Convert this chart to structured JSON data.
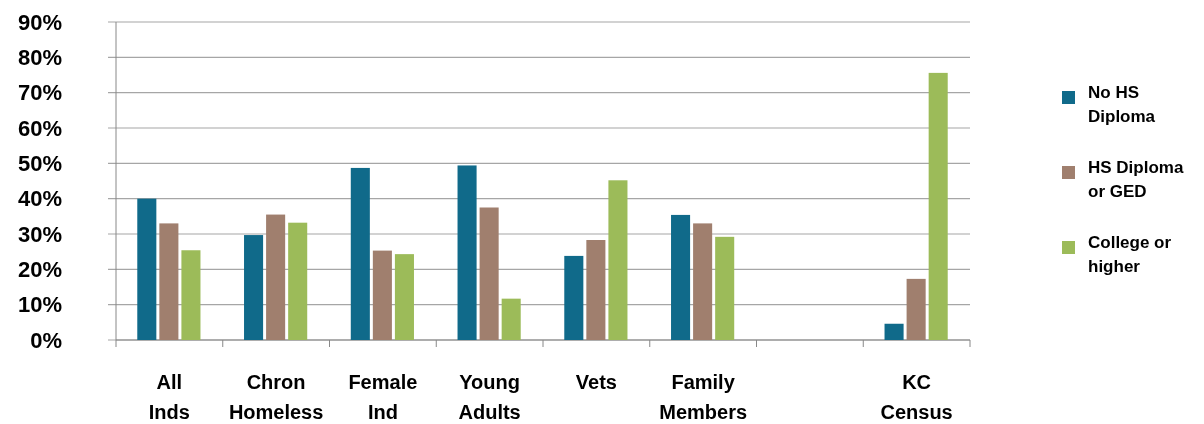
{
  "chart_data": {
    "type": "bar",
    "categories": [
      "All Inds",
      "Chron Homeless",
      "Female Ind",
      "Young Adults",
      "Vets",
      "Family Members",
      null,
      "KC Census"
    ],
    "series": [
      {
        "name": "No HS Diploma",
        "color": "#106a8a",
        "values": [
          40,
          29.7,
          48.7,
          49.4,
          23.8,
          35.4,
          null,
          4.6
        ]
      },
      {
        "name": "HS Diploma or GED",
        "color": "#a07f6e",
        "values": [
          33,
          35.5,
          25.3,
          37.5,
          28.3,
          33,
          null,
          17.3
        ]
      },
      {
        "name": "College or higher",
        "color": "#9cbb59",
        "values": [
          25.4,
          33.2,
          24.3,
          11.7,
          45.2,
          29.2,
          null,
          75.6
        ]
      }
    ],
    "ylim": [
      0,
      90
    ],
    "yticks": [
      {
        "value": 0,
        "label": "0%"
      },
      {
        "value": 10,
        "label": "10%"
      },
      {
        "value": 20,
        "label": "20%"
      },
      {
        "value": 30,
        "label": "30%"
      },
      {
        "value": 40,
        "label": "40%"
      },
      {
        "value": 50,
        "label": "50%"
      },
      {
        "value": 60,
        "label": "60%"
      },
      {
        "value": 70,
        "label": "70%"
      },
      {
        "value": 80,
        "label": "80%"
      },
      {
        "value": 90,
        "label": "90%"
      }
    ],
    "grid": "y",
    "legend": "right"
  }
}
